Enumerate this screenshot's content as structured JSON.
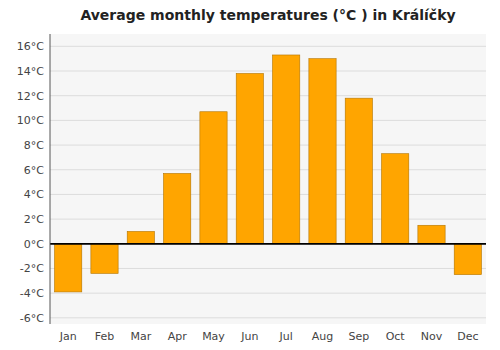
{
  "chart_data": {
    "type": "bar",
    "title": "Average monthly temperatures (°C ) in Králíčky",
    "categories": [
      "Jan",
      "Feb",
      "Mar",
      "Apr",
      "May",
      "Jun",
      "Jul",
      "Aug",
      "Sep",
      "Oct",
      "Nov",
      "Dec"
    ],
    "values": [
      -3.9,
      -2.4,
      1.0,
      5.7,
      10.7,
      13.8,
      15.3,
      15.0,
      11.8,
      7.3,
      1.5,
      -2.5
    ],
    "color": "#FFA500",
    "ylim": [
      -6.5,
      17.0
    ],
    "yticks": [
      {
        "value": -6,
        "label": "-6°C"
      },
      {
        "value": -4,
        "label": "-4°C"
      },
      {
        "value": -2,
        "label": "-2°C"
      },
      {
        "value": 0,
        "label": "0°C"
      },
      {
        "value": 2,
        "label": "2°C"
      },
      {
        "value": 4,
        "label": "4°C"
      },
      {
        "value": 6,
        "label": "6°C"
      },
      {
        "value": 8,
        "label": "8°C"
      },
      {
        "value": 10,
        "label": "10°C"
      },
      {
        "value": 12,
        "label": "12°C"
      },
      {
        "value": 14,
        "label": "14°C"
      },
      {
        "value": 16,
        "label": "16°C"
      }
    ],
    "grid": true
  }
}
